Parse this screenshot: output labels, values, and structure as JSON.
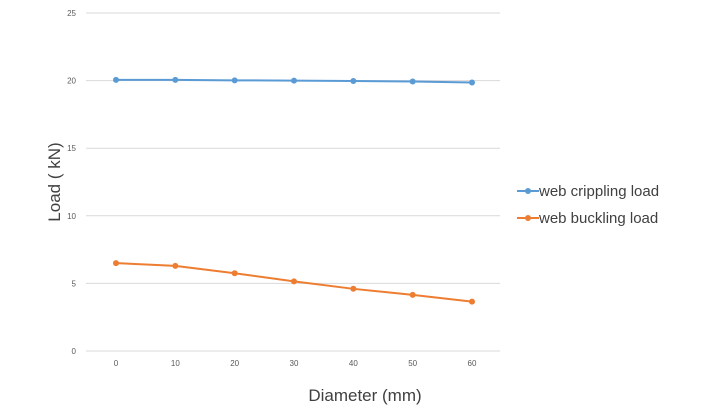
{
  "chart_data": {
    "type": "line",
    "xlabel": "Diameter (mm)",
    "ylabel": "Load ( kN)",
    "x": [
      0,
      10,
      20,
      30,
      40,
      50,
      60
    ],
    "x_tick_labels": [
      "0",
      "10",
      "20",
      "30",
      "40",
      "50",
      "60"
    ],
    "y_tick_labels": [
      "0",
      "5",
      "10",
      "15",
      "20",
      "25"
    ],
    "ylim": [
      0,
      25
    ],
    "grid": true,
    "legend_position": "right",
    "series": [
      {
        "name": "web crippling load",
        "color": "#5b9bd5",
        "values": [
          20.05,
          20.05,
          20.02,
          20.0,
          19.97,
          19.93,
          19.86
        ]
      },
      {
        "name": "web buckling load",
        "color": "#ed7d31",
        "values": [
          6.5,
          6.3,
          5.75,
          5.15,
          4.6,
          4.15,
          3.65
        ]
      }
    ]
  }
}
